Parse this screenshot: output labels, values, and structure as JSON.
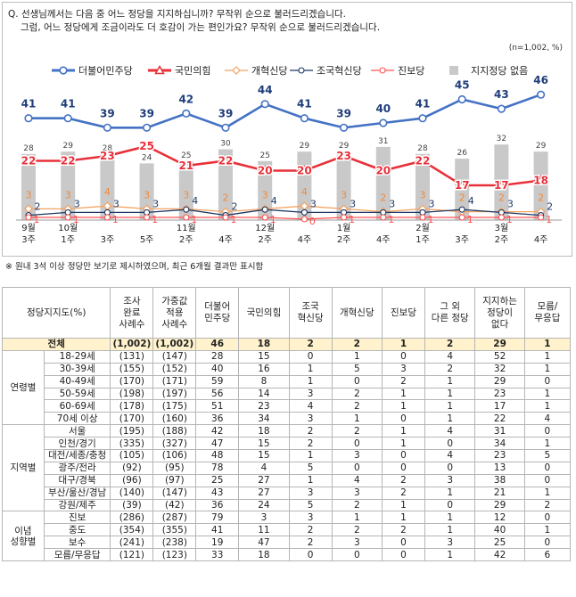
{
  "question": {
    "line1": "Q. 선생님께서는 다음 중 어느 정당을 지지하십니까? 무작위 순으로 불러드리겠습니다.",
    "line2": "그럼, 어느 정당에게 조금이라도 더 호감이 가는 편인가요? 무작위 순으로 불러드리겠습니다."
  },
  "unit_note": "(n=1,002, %)",
  "footnote": "※ 원내 3석 이상 정당만 보기로 제시하였으며, 최근 6개월 결과만 표시함",
  "chart_data": {
    "type": "line",
    "x_labels": [
      {
        "top": "9월",
        "bottom": "3주"
      },
      {
        "top": "10월",
        "bottom": "1주"
      },
      {
        "top": "",
        "bottom": "3주"
      },
      {
        "top": "",
        "bottom": "5주"
      },
      {
        "top": "11월",
        "bottom": "2주"
      },
      {
        "top": "",
        "bottom": "4주"
      },
      {
        "top": "12월",
        "bottom": "2주"
      },
      {
        "top": "",
        "bottom": "4주"
      },
      {
        "top": "1월",
        "bottom": "2주"
      },
      {
        "top": "",
        "bottom": "4주"
      },
      {
        "top": "2월",
        "bottom": "1주"
      },
      {
        "top": "",
        "bottom": "3주"
      },
      {
        "top": "3월",
        "bottom": "2주"
      },
      {
        "top": "",
        "bottom": "4주"
      }
    ],
    "bars": {
      "name": "지지정당 없음",
      "color": "#c9c9c9",
      "values": [
        28,
        29,
        28,
        24,
        25,
        30,
        25,
        29,
        29,
        31,
        28,
        26,
        32,
        29
      ]
    },
    "series": [
      {
        "name": "더불어민주당",
        "color": "#4472c4",
        "label_color": "#1f3d7a",
        "marker": "circle",
        "values": [
          41,
          41,
          39,
          39,
          42,
          39,
          44,
          41,
          39,
          40,
          41,
          45,
          43,
          46
        ]
      },
      {
        "name": "국민의힘",
        "color": "#e8303a",
        "label_color": "#e8303a",
        "marker": "triangle",
        "values": [
          22,
          22,
          23,
          25,
          21,
          22,
          20,
          20,
          23,
          20,
          22,
          17,
          17,
          18
        ]
      },
      {
        "name": "개혁신당",
        "color": "#f4a261",
        "label_color": "#f08a3c",
        "marker": "diamond",
        "values": [
          3,
          3,
          4,
          3,
          3,
          2,
          3,
          4,
          3,
          2,
          3,
          2,
          2,
          2
        ]
      },
      {
        "name": "조국혁신당",
        "color": "#1f3864",
        "label_color": "#1f3864",
        "marker": "circle-open",
        "values": [
          2,
          3,
          3,
          3,
          4,
          2,
          4,
          3,
          3,
          3,
          3,
          4,
          3,
          2
        ]
      },
      {
        "name": "진보당",
        "color": "#ff5050",
        "label_color": "#ff5050",
        "marker": "circle-open",
        "values": [
          1,
          1,
          1,
          1,
          1,
          1,
          1,
          0,
          1,
          1,
          1,
          1,
          1,
          1
        ]
      }
    ],
    "series_order_legend": [
      "더불어민주당",
      "국민의힘",
      "개혁신당",
      "조국혁신당",
      "진보당",
      "지지정당 없음"
    ]
  },
  "table": {
    "headers": [
      "정당지지도(%)",
      "조사\n완료\n사례수",
      "가중값\n적용\n사례수",
      "더불어\n민주당",
      "국민의힘",
      "조국\n혁신당",
      "개혁신당",
      "진보당",
      "그 외\n다른 정당",
      "지지하는\n정당이\n없다",
      "모름/\n무응답"
    ],
    "total": [
      "전체",
      "(1,002)",
      "(1,002)",
      "46",
      "18",
      "2",
      "2",
      "1",
      "2",
      "29",
      "1"
    ],
    "groups": [
      {
        "name": "연령별",
        "rows": [
          [
            "18-29세",
            "(131)",
            "(147)",
            "28",
            "15",
            "0",
            "1",
            "0",
            "4",
            "52",
            "1"
          ],
          [
            "30-39세",
            "(155)",
            "(152)",
            "40",
            "16",
            "1",
            "5",
            "3",
            "2",
            "32",
            "1"
          ],
          [
            "40-49세",
            "(170)",
            "(171)",
            "59",
            "8",
            "1",
            "0",
            "2",
            "1",
            "29",
            "0"
          ],
          [
            "50-59세",
            "(198)",
            "(197)",
            "56",
            "14",
            "3",
            "2",
            "1",
            "1",
            "23",
            "1"
          ],
          [
            "60-69세",
            "(178)",
            "(175)",
            "51",
            "23",
            "4",
            "2",
            "1",
            "1",
            "17",
            "1"
          ],
          [
            "70세 이상",
            "(170)",
            "(160)",
            "36",
            "34",
            "3",
            "1",
            "0",
            "1",
            "22",
            "4"
          ]
        ]
      },
      {
        "name": "지역별",
        "rows": [
          [
            "서울",
            "(195)",
            "(188)",
            "42",
            "18",
            "2",
            "2",
            "1",
            "4",
            "31",
            "0"
          ],
          [
            "인천/경기",
            "(335)",
            "(327)",
            "47",
            "15",
            "2",
            "0",
            "1",
            "0",
            "34",
            "1"
          ],
          [
            "대전/세종/충청",
            "(105)",
            "(106)",
            "48",
            "15",
            "1",
            "3",
            "0",
            "4",
            "23",
            "5"
          ],
          [
            "광주/전라",
            "(92)",
            "(95)",
            "78",
            "4",
            "5",
            "0",
            "0",
            "0",
            "13",
            "0"
          ],
          [
            "대구/경북",
            "(96)",
            "(97)",
            "25",
            "27",
            "1",
            "4",
            "2",
            "3",
            "38",
            "0"
          ],
          [
            "부산/울산/경남",
            "(140)",
            "(147)",
            "43",
            "27",
            "3",
            "3",
            "2",
            "1",
            "21",
            "1"
          ],
          [
            "강원/제주",
            "(39)",
            "(42)",
            "36",
            "24",
            "5",
            "2",
            "1",
            "0",
            "29",
            "2"
          ]
        ]
      },
      {
        "name": "이념\n성향별",
        "rows": [
          [
            "진보",
            "(286)",
            "(287)",
            "79",
            "3",
            "3",
            "1",
            "1",
            "1",
            "12",
            "0"
          ],
          [
            "중도",
            "(354)",
            "(355)",
            "41",
            "11",
            "2",
            "2",
            "2",
            "1",
            "40",
            "1"
          ],
          [
            "보수",
            "(241)",
            "(238)",
            "19",
            "47",
            "2",
            "3",
            "0",
            "3",
            "25",
            "0"
          ],
          [
            "모름/무응답",
            "(121)",
            "(123)",
            "33",
            "18",
            "0",
            "0",
            "0",
            "1",
            "42",
            "6"
          ]
        ]
      }
    ]
  }
}
